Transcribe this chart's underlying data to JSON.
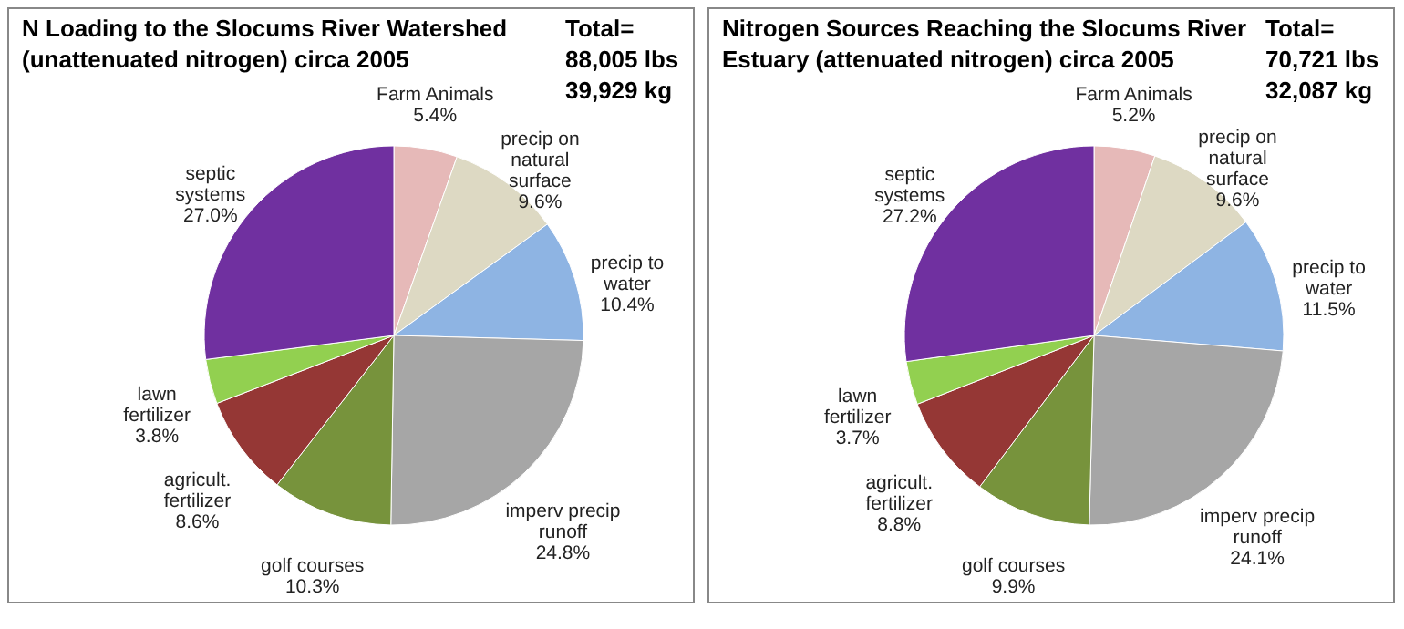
{
  "chart_data": [
    {
      "type": "pie",
      "title": "N Loading to the Slocums River Watershed (unattenuated nitrogen) circa 2005",
      "annotations": [
        "Total= 88,005 lbs 39,929 kg"
      ],
      "categories": [
        "Farm Animals",
        "precip on natural surface",
        "precip to water",
        "imperv precip runoff",
        "golf courses",
        "agricult. fertilizer",
        "lawn fertilizer",
        "septic systems"
      ],
      "values": [
        5.4,
        9.6,
        10.4,
        24.8,
        10.3,
        8.6,
        3.8,
        27.0
      ],
      "value_labels": [
        "5.4%",
        "9.6%",
        "10.4%",
        "24.8%",
        "10.3%",
        "8.6%",
        "3.8%",
        "27.0%"
      ],
      "colors": [
        "#e6b9b8",
        "#ddd9c3",
        "#8eb4e3",
        "#a6a6a6",
        "#77933c",
        "#953735",
        "#92d050",
        "#7030a0"
      ]
    },
    {
      "type": "pie",
      "title": "Nitrogen Sources Reaching the Slocums River Estuary  (attenuated nitrogen) circa 2005",
      "annotations": [
        "Total= 70,721 lbs 32,087 kg"
      ],
      "categories": [
        "Farm Animals",
        "precip on natural surface",
        "precip to water",
        "imperv precip runoff",
        "golf courses",
        "agricult. fertilizer",
        "lawn fertilizer",
        "septic systems"
      ],
      "values": [
        5.2,
        9.6,
        11.5,
        24.1,
        9.9,
        8.8,
        3.7,
        27.2
      ],
      "value_labels": [
        "5.2%",
        "9.6%",
        "11.5%",
        "24.1%",
        "9.9%",
        "8.8%",
        "3.7%",
        "27.2%"
      ],
      "colors": [
        "#e6b9b8",
        "#ddd9c3",
        "#8eb4e3",
        "#a6a6a6",
        "#77933c",
        "#953735",
        "#92d050",
        "#7030a0"
      ]
    }
  ]
}
